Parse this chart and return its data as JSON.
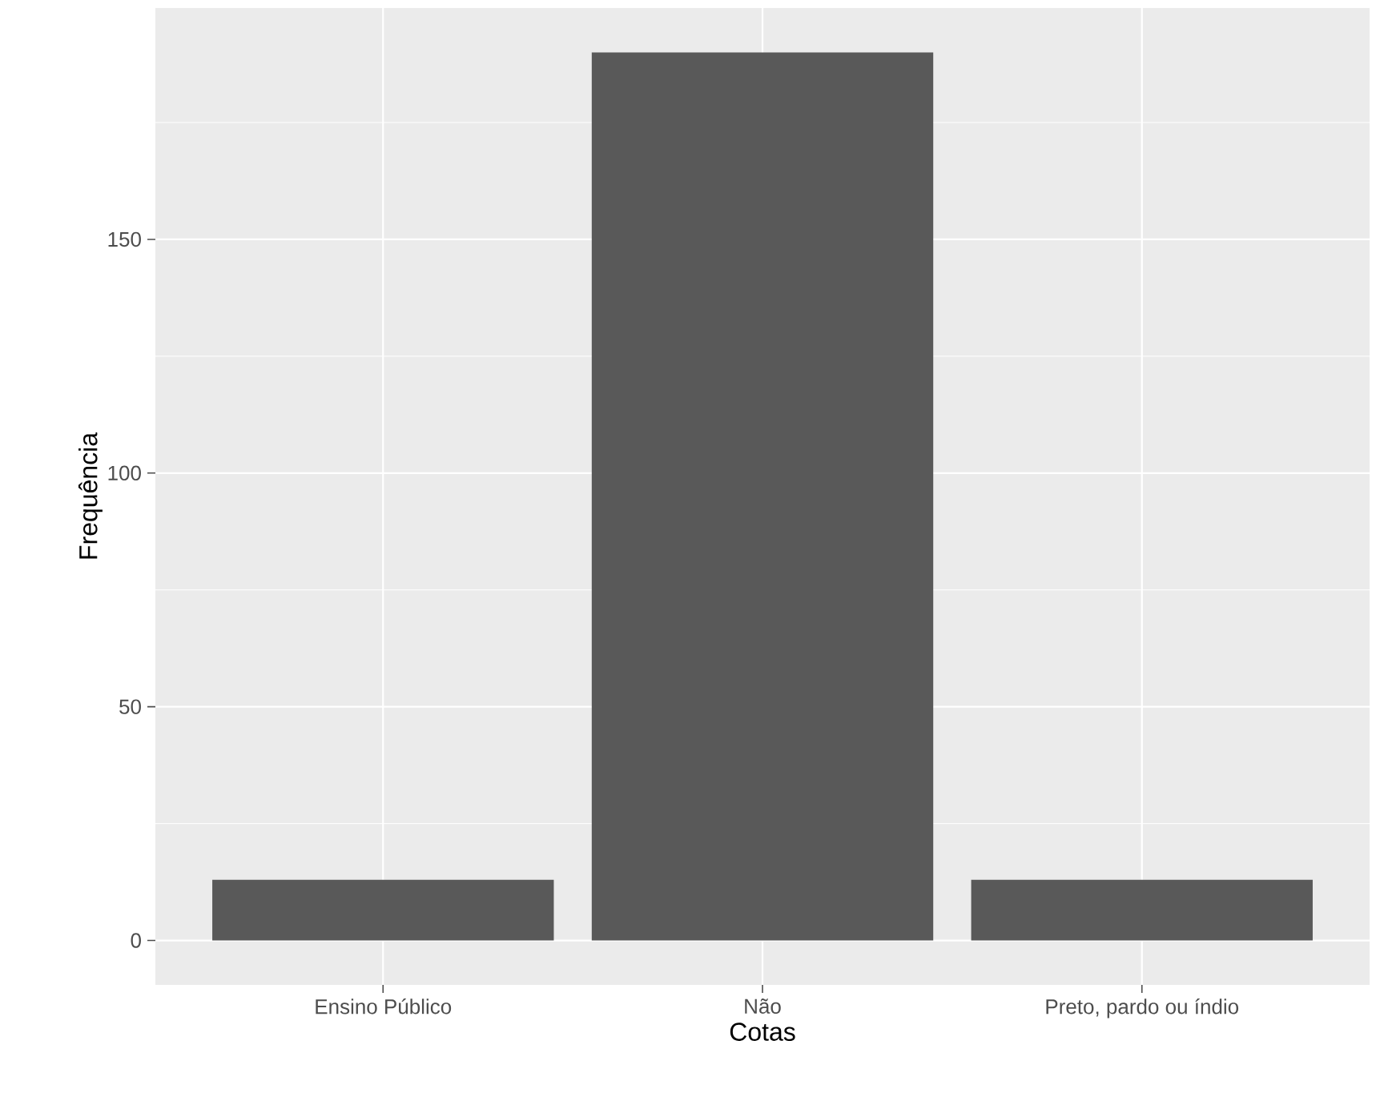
{
  "chart_data": {
    "type": "bar",
    "xlabel": "Cotas",
    "ylabel": "Frequência",
    "categories": [
      "Ensino Público",
      "Não",
      "Preto, pardo ou índio"
    ],
    "values": [
      13,
      190,
      13
    ],
    "color": "#595959",
    "ylim": [
      -9.5,
      199.5
    ],
    "yticks": [
      0,
      50,
      100,
      150
    ],
    "grid": true
  }
}
